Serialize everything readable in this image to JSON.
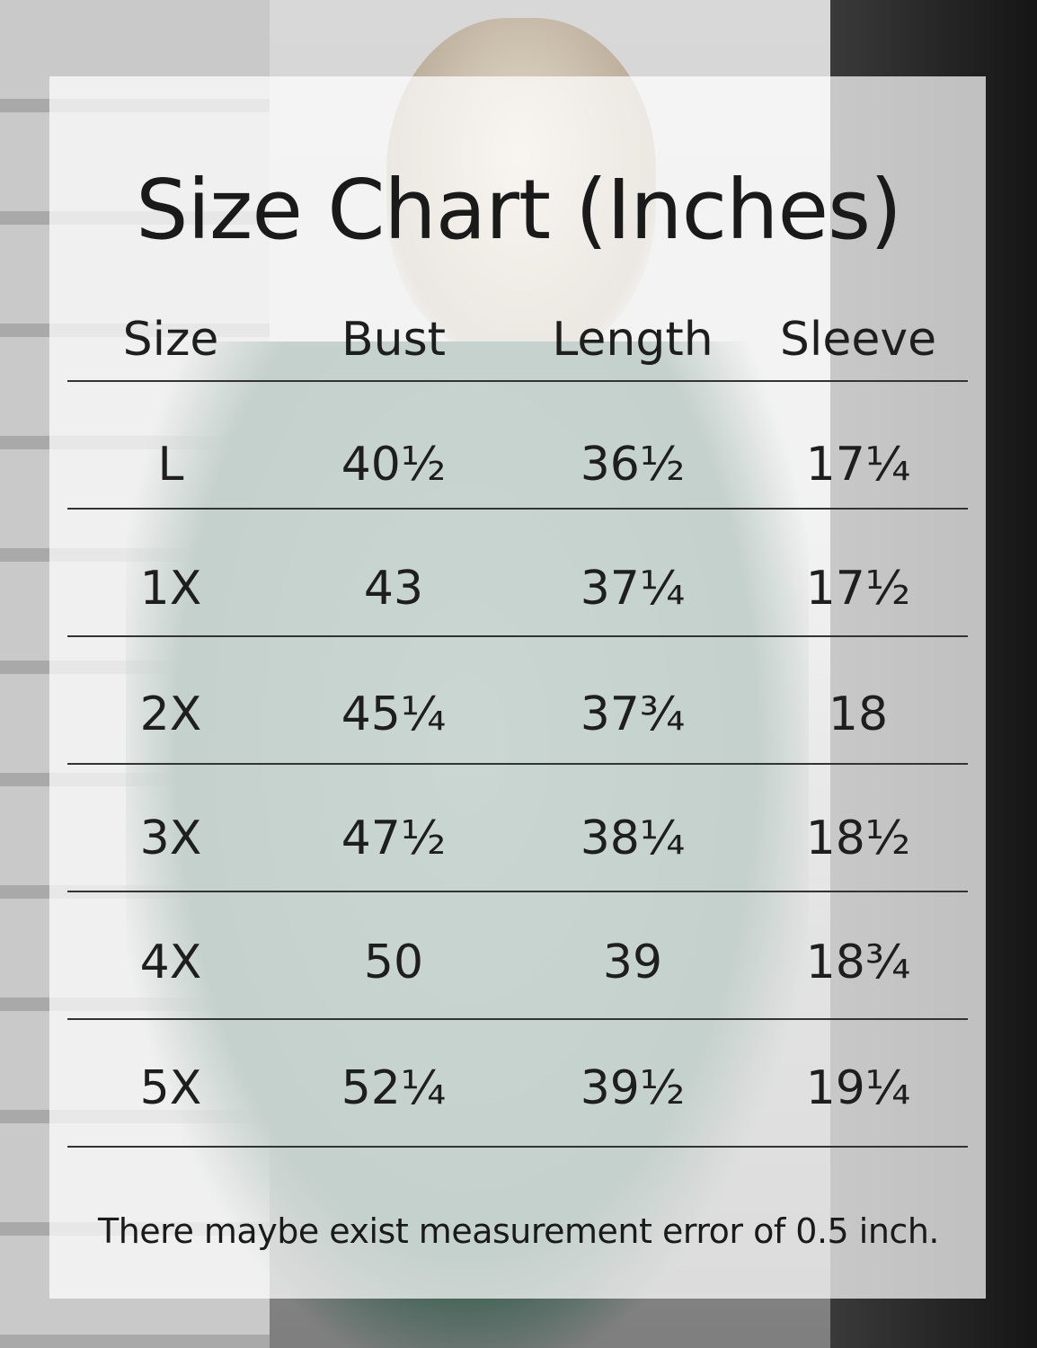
{
  "title": "Size Chart (Inches)",
  "headers": [
    "Size",
    "Bust",
    "Length",
    "Sleeve"
  ],
  "rows": [
    [
      "L",
      "40½",
      "36½",
      "17¼"
    ],
    [
      "1X",
      "43",
      "37¼",
      "17½"
    ],
    [
      "2X",
      "45¼",
      "37¾",
      "18"
    ],
    [
      "3X",
      "47½",
      "38¼",
      "18½"
    ],
    [
      "4X",
      "50",
      "39",
      "18¾"
    ],
    [
      "5X",
      "52¼",
      "39½",
      "19¼"
    ]
  ],
  "note": "There maybe exist measurement error of 0.5 inch."
}
